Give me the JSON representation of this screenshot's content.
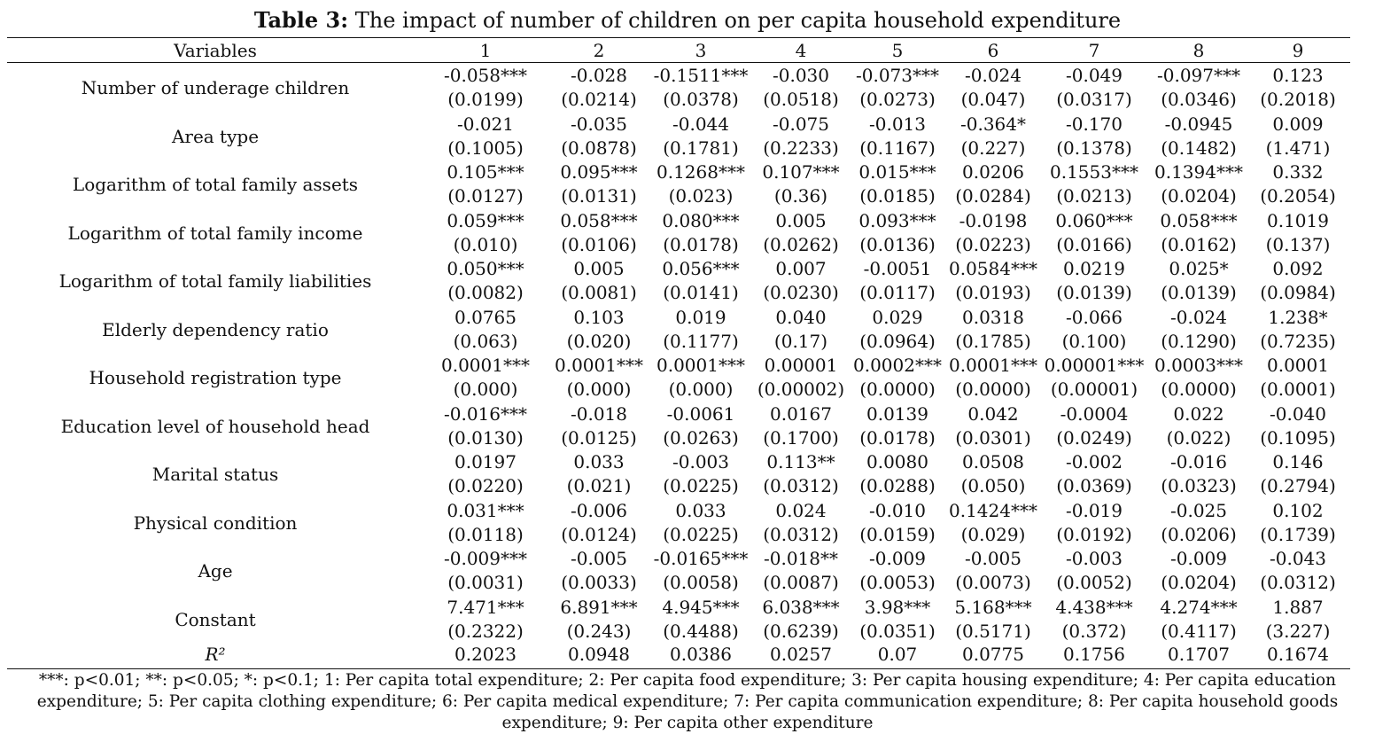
{
  "title": {
    "label": "Table 3:",
    "text": " The impact of number of children on per capita household expenditure"
  },
  "table": {
    "header_first": "Variables",
    "columns": [
      "1",
      "2",
      "3",
      "4",
      "5",
      "6",
      "7",
      "8",
      "9"
    ],
    "rows": [
      {
        "name": "Number of underage children",
        "coef": [
          "-0.058***",
          "-0.028",
          "-0.1511***",
          "-0.030",
          "-0.073***",
          "-0.024",
          "-0.049",
          "-0.097***",
          "0.123"
        ],
        "se": [
          "(0.0199)",
          "(0.0214)",
          "(0.0378)",
          "(0.0518)",
          "(0.0273)",
          "(0.047)",
          "(0.0317)",
          "(0.0346)",
          "(0.2018)"
        ]
      },
      {
        "name": "Area type",
        "coef": [
          "-0.021",
          "-0.035",
          "-0.044",
          "-0.075",
          "-0.013",
          "-0.364*",
          "-0.170",
          "-0.0945",
          "0.009"
        ],
        "se": [
          "(0.1005)",
          "(0.0878)",
          "(0.1781)",
          "(0.2233)",
          "(0.1167)",
          "(0.227)",
          "(0.1378)",
          "(0.1482)",
          "(1.471)"
        ]
      },
      {
        "name": "Logarithm of total family assets",
        "coef": [
          "0.105***",
          "0.095***",
          "0.1268***",
          "0.107***",
          "0.015***",
          "0.0206",
          "0.1553***",
          "0.1394***",
          "0.332"
        ],
        "se": [
          "(0.0127)",
          "(0.0131)",
          "(0.023)",
          "(0.36)",
          "(0.0185)",
          "(0.0284)",
          "(0.0213)",
          "(0.0204)",
          "(0.2054)"
        ]
      },
      {
        "name": "Logarithm of total family income",
        "coef": [
          "0.059***",
          "0.058***",
          "0.080***",
          "0.005",
          "0.093***",
          "-0.0198",
          "0.060***",
          "0.058***",
          "0.1019"
        ],
        "se": [
          "(0.010)",
          "(0.0106)",
          "(0.0178)",
          "(0.0262)",
          "(0.0136)",
          "(0.0223)",
          "(0.0166)",
          "(0.0162)",
          "(0.137)"
        ]
      },
      {
        "name": "Logarithm of total family liabilities",
        "coef": [
          "0.050***",
          "0.005",
          "0.056***",
          "0.007",
          "-0.0051",
          "0.0584***",
          "0.0219",
          "0.025*",
          "0.092"
        ],
        "se": [
          "(0.0082)",
          "(0.0081)",
          "(0.0141)",
          "(0.0230)",
          "(0.0117)",
          "(0.0193)",
          "(0.0139)",
          "(0.0139)",
          "(0.0984)"
        ]
      },
      {
        "name": "Elderly dependency ratio",
        "coef": [
          "0.0765",
          "0.103",
          "0.019",
          "0.040",
          "0.029",
          "0.0318",
          "-0.066",
          "-0.024",
          "1.238*"
        ],
        "se": [
          "(0.063)",
          "(0.020)",
          "(0.1177)",
          "(0.17)",
          "(0.0964)",
          "(0.1785)",
          "(0.100)",
          "(0.1290)",
          "(0.7235)"
        ]
      },
      {
        "name": "Household registration type",
        "coef": [
          "0.0001***",
          "0.0001***",
          "0.0001***",
          "0.00001",
          "0.0002***",
          "0.0001***",
          "0.00001***",
          "0.0003***",
          "0.0001"
        ],
        "se": [
          "(0.000)",
          "(0.000)",
          "(0.000)",
          "(0.00002)",
          "(0.0000)",
          "(0.0000)",
          "(0.00001)",
          "(0.0000)",
          "(0.0001)"
        ]
      },
      {
        "name": "Education level of household head",
        "coef": [
          "-0.016***",
          "-0.018",
          "-0.0061",
          "0.0167",
          "0.0139",
          "0.042",
          "-0.0004",
          "0.022",
          "-0.040"
        ],
        "se": [
          "(0.0130)",
          "(0.0125)",
          "(0.0263)",
          "(0.1700)",
          "(0.0178)",
          "(0.0301)",
          "(0.0249)",
          "(0.022)",
          "(0.1095)"
        ]
      },
      {
        "name": "Marital status",
        "coef": [
          "0.0197",
          "0.033",
          "-0.003",
          "0.113**",
          "0.0080",
          "0.0508",
          "-0.002",
          "-0.016",
          "0.146"
        ],
        "se": [
          "(0.0220)",
          "(0.021)",
          "(0.0225)",
          "(0.0312)",
          "(0.0288)",
          "(0.050)",
          "(0.0369)",
          "(0.0323)",
          "(0.2794)"
        ]
      },
      {
        "name": "Physical condition",
        "coef": [
          "0.031***",
          "-0.006",
          "0.033",
          "0.024",
          "-0.010",
          "0.1424***",
          "-0.019",
          "-0.025",
          "0.102"
        ],
        "se": [
          "(0.0118)",
          "(0.0124)",
          "(0.0225)",
          "(0.0312)",
          "(0.0159)",
          "(0.029)",
          "(0.0192)",
          "(0.0206)",
          "(0.1739)"
        ]
      },
      {
        "name": "Age",
        "coef": [
          "-0.009***",
          "-0.005",
          "-0.0165***",
          "-0.018**",
          "-0.009",
          "-0.005",
          "-0.003",
          "-0.009",
          "-0.043"
        ],
        "se": [
          "(0.0031)",
          "(0.0033)",
          "(0.0058)",
          "(0.0087)",
          "(0.0053)",
          "(0.0073)",
          "(0.0052)",
          "(0.0204)",
          "(0.0312)"
        ]
      },
      {
        "name": "Constant",
        "coef": [
          "7.471***",
          "6.891***",
          "4.945***",
          "6.038***",
          "3.98***",
          "5.168***",
          "4.438***",
          "4.274***",
          "1.887"
        ],
        "se": [
          "(0.2322)",
          "(0.243)",
          "(0.4488)",
          "(0.6239)",
          "(0.0351)",
          "(0.5171)",
          "(0.372)",
          "(0.4117)",
          "(3.227)"
        ]
      }
    ],
    "r2_label": "R²",
    "r2": [
      "0.2023",
      "0.0948",
      "0.0386",
      "0.0257",
      "0.07",
      "0.0775",
      "0.1756",
      "0.1707",
      "0.1674"
    ]
  },
  "notes": {
    "line1": "***: p<0.01; **: p<0.05; *: p<0.1; 1: Per capita total expenditure; 2: Per capita food expenditure; 3: Per capita housing expenditure; 4: Per capita education",
    "line2": "expenditure; 5: Per capita clothing expenditure; 6: Per capita medical expenditure; 7: Per capita communication expenditure; 8: Per capita household goods",
    "line3": "expenditure; 9: Per capita other expenditure"
  }
}
